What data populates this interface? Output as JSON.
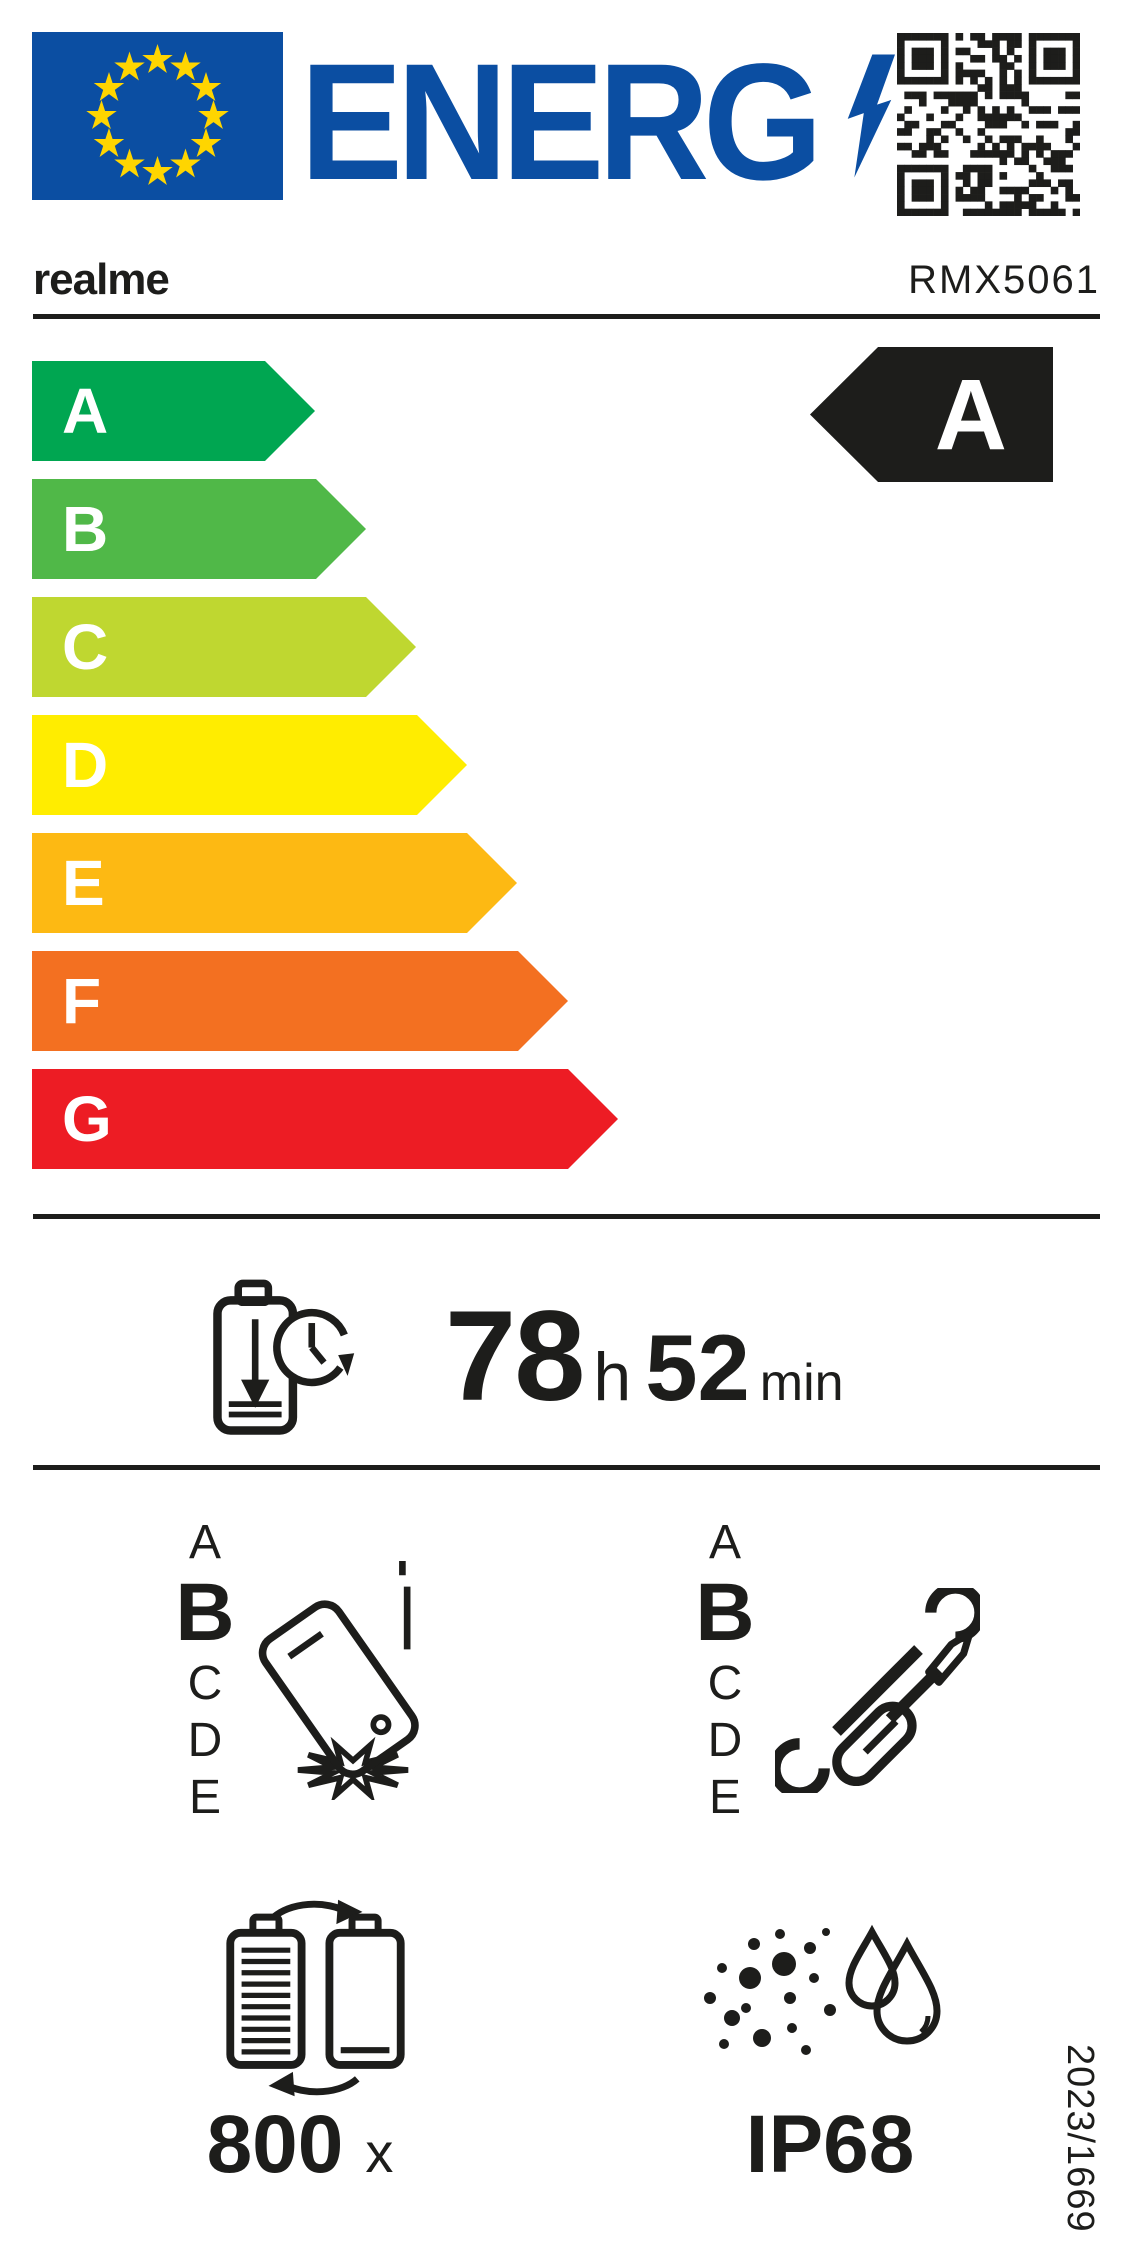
{
  "header": {
    "logo_text": "ENERG",
    "brand": "realme",
    "model": "RMX5061"
  },
  "energy_scale": {
    "classes": [
      {
        "letter": "A",
        "color": "#00a651"
      },
      {
        "letter": "B",
        "color": "#50b848"
      },
      {
        "letter": "C",
        "color": "#bfd730"
      },
      {
        "letter": "D",
        "color": "#ffed00"
      },
      {
        "letter": "E",
        "color": "#fdb913"
      },
      {
        "letter": "F",
        "color": "#f37021"
      },
      {
        "letter": "G",
        "color": "#ed1c24"
      }
    ],
    "rating": "A",
    "rating_bg": "#1d1d1b"
  },
  "battery_endurance": {
    "hours": "78",
    "hours_unit": "h",
    "minutes": "52",
    "minutes_unit": "min"
  },
  "free_fall_reliability": {
    "scale": [
      "A",
      "B",
      "C",
      "D",
      "E"
    ],
    "value": "B"
  },
  "repairability": {
    "scale": [
      "A",
      "B",
      "C",
      "D",
      "E"
    ],
    "value": "B"
  },
  "battery_cycles": {
    "value": "800",
    "unit": "x"
  },
  "ingress_protection": {
    "value": "IP68"
  },
  "regulation": "2023/1669",
  "icons": {
    "eu-flag": "blue rectangle with 12 yellow stars",
    "lightning-bolt-icon": "blue energy bolt after ENERG wordmark",
    "qr-code": "black QR code top right",
    "battery-clock-icon": "discharging battery with clock",
    "phone-drop-icon": "falling phone with impact burst",
    "tools-icon": "wrench and screwdriver",
    "battery-cycle-icon": "two batteries with circular arrows",
    "dust-water-icon": "dust particles and water drops"
  },
  "colors": {
    "eu_blue": "#0b4ea2",
    "star_yellow": "#ffd500",
    "ink": "#1d1d1b"
  }
}
